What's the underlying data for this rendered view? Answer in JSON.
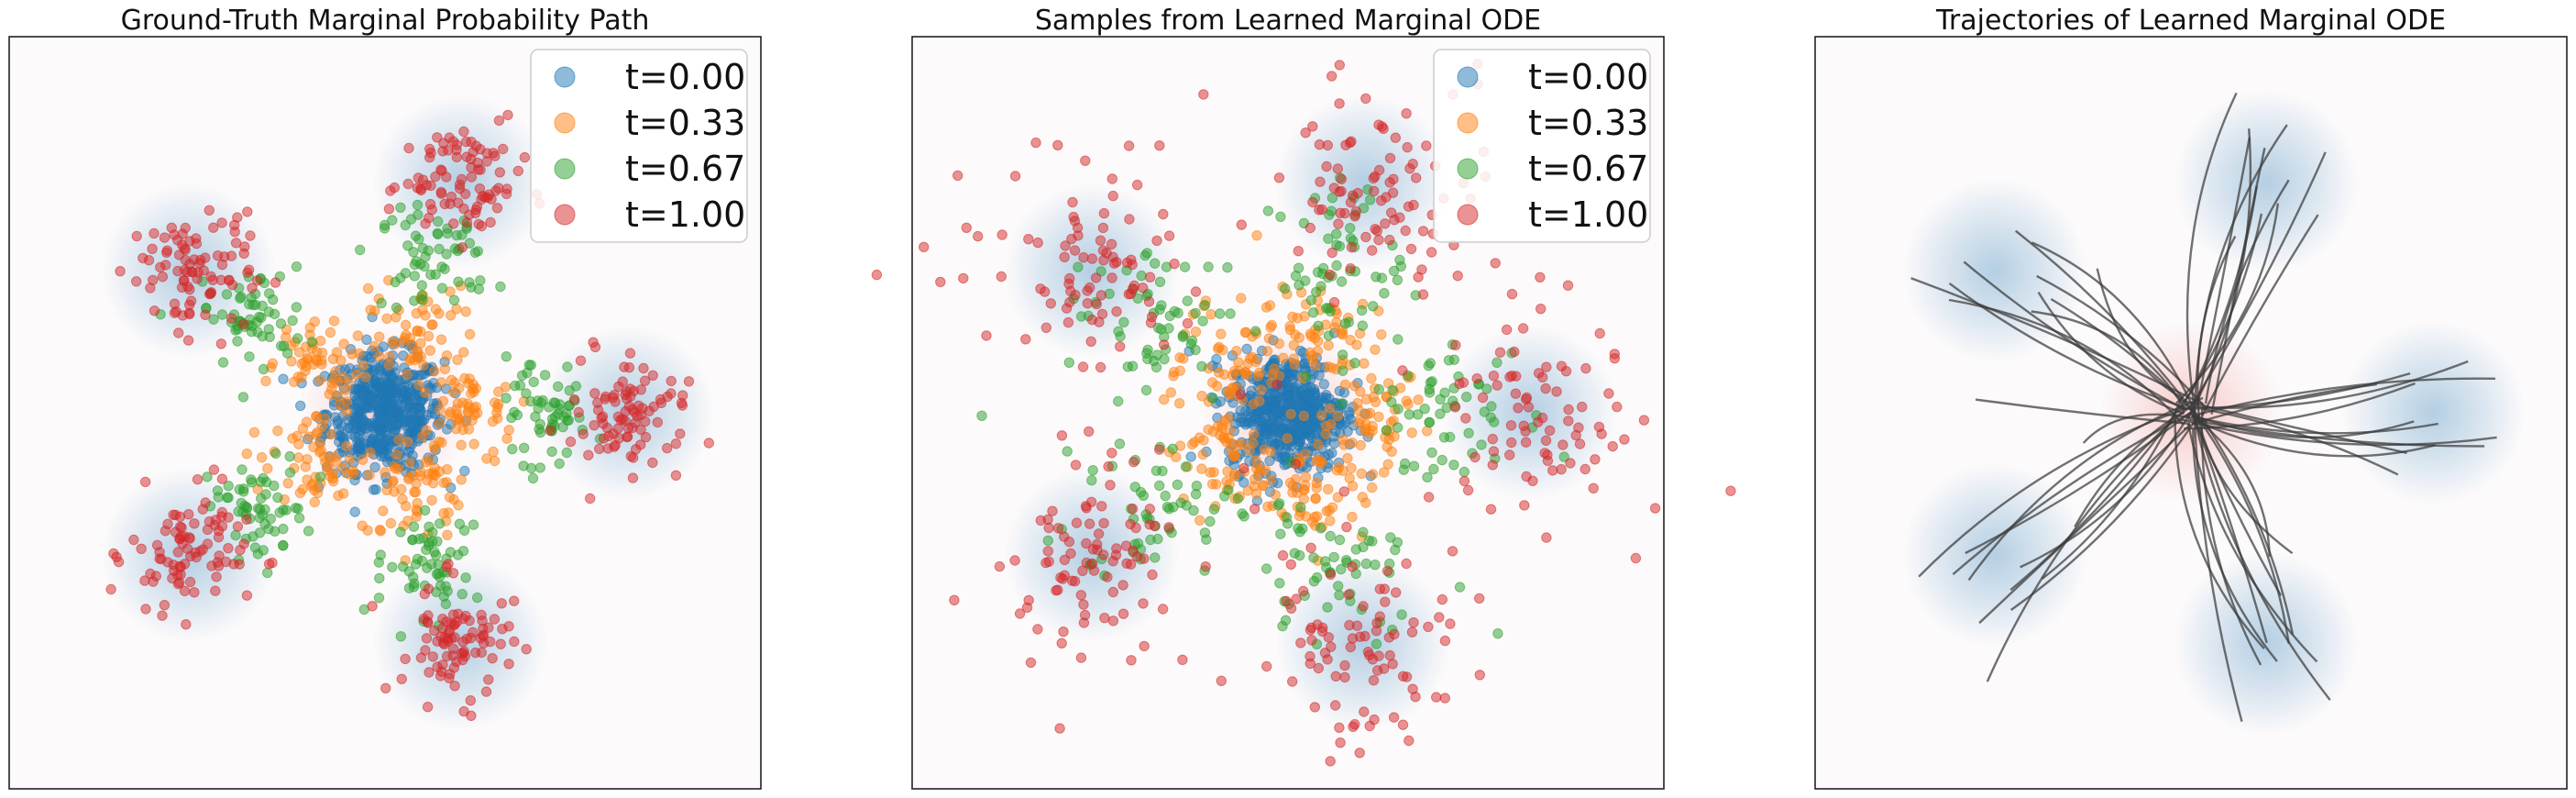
{
  "colors": {
    "t0": "#1f77b4",
    "t1": "#ff7f0e",
    "t2": "#2ca02c",
    "t3": "#d62728",
    "target_glow": "#9cc0db",
    "source_glow": "#f4b4b0",
    "trajectory": "#3a3a3a"
  },
  "chart_data": [
    {
      "type": "scatter",
      "title": "Ground-Truth Marginal Probability Path",
      "xlabel": "",
      "ylabel": "",
      "xlim": [
        -4.5,
        4.5
      ],
      "ylim": [
        -4.5,
        4.5
      ],
      "grid": false,
      "ticks_visible": false,
      "legend_position": "top-right",
      "legend": [
        "t=0.00",
        "t=0.33",
        "t=0.67",
        "t=1.00"
      ],
      "series": [
        {
          "name": "t=0.00",
          "center": [
            0,
            0
          ],
          "components": [
            [
              0,
              0
            ]
          ],
          "std": 0.35,
          "count": 520
        },
        {
          "name": "t=0.33",
          "components": [
            [
              0.96,
              0
            ],
            [
              0.3,
              0.91
            ],
            [
              -0.78,
              0.56
            ],
            [
              -0.78,
              -0.56
            ],
            [
              0.3,
              -0.91
            ]
          ],
          "std": 0.3,
          "count": 300
        },
        {
          "name": "t=0.67",
          "components": [
            [
              1.93,
              0
            ],
            [
              0.6,
              1.83
            ],
            [
              -1.56,
              1.13
            ],
            [
              -1.56,
              -1.13
            ],
            [
              0.6,
              -1.83
            ]
          ],
          "std": 0.3,
          "count": 300
        },
        {
          "name": "t=1.00",
          "components": [
            [
              2.9,
              0
            ],
            [
              0.9,
              2.76
            ],
            [
              -2.35,
              1.7
            ],
            [
              -2.35,
              -1.7
            ],
            [
              0.9,
              -2.76
            ]
          ],
          "std": 0.35,
          "count": 450
        }
      ]
    },
    {
      "type": "scatter",
      "title": "Samples from Learned Marginal ODE",
      "xlabel": "",
      "ylabel": "",
      "xlim": [
        -4.5,
        4.5
      ],
      "ylim": [
        -4.5,
        4.5
      ],
      "grid": false,
      "ticks_visible": false,
      "legend_position": "top-right",
      "legend": [
        "t=0.00",
        "t=0.33",
        "t=0.67",
        "t=1.00"
      ],
      "series": [
        {
          "name": "t=0.00",
          "center": [
            0,
            0
          ],
          "components": [
            [
              0,
              0
            ]
          ],
          "std": 0.35,
          "count": 520
        },
        {
          "name": "t=0.33",
          "components": [
            [
              0.96,
              0
            ],
            [
              0.3,
              0.91
            ],
            [
              -0.78,
              0.56
            ],
            [
              -0.78,
              -0.56
            ],
            [
              0.3,
              -0.91
            ]
          ],
          "std": 0.34,
          "count": 300
        },
        {
          "name": "t=0.67",
          "components": [
            [
              1.93,
              0
            ],
            [
              0.6,
              1.83
            ],
            [
              -1.56,
              1.13
            ],
            [
              -1.56,
              -1.13
            ],
            [
              0.6,
              -1.83
            ]
          ],
          "std": 0.42,
          "count": 300
        },
        {
          "name": "t=1.00",
          "components": [
            [
              2.9,
              0
            ],
            [
              0.9,
              2.76
            ],
            [
              -2.35,
              1.7
            ],
            [
              -2.35,
              -1.7
            ],
            [
              0.9,
              -2.76
            ]
          ],
          "std": 0.55,
          "count": 450
        }
      ]
    },
    {
      "type": "line",
      "title": "Trajectories of Learned Marginal ODE",
      "xlabel": "",
      "ylabel": "",
      "xlim": [
        -4.5,
        4.5
      ],
      "ylim": [
        -4.5,
        4.5
      ],
      "grid": false,
      "ticks_visible": false,
      "source_center": [
        0,
        0
      ],
      "target_components": [
        [
          2.9,
          0
        ],
        [
          0.9,
          2.76
        ],
        [
          -2.35,
          1.7
        ],
        [
          -2.35,
          -1.7
        ],
        [
          0.9,
          -2.76
        ]
      ],
      "trajectory_count": 60
    }
  ]
}
